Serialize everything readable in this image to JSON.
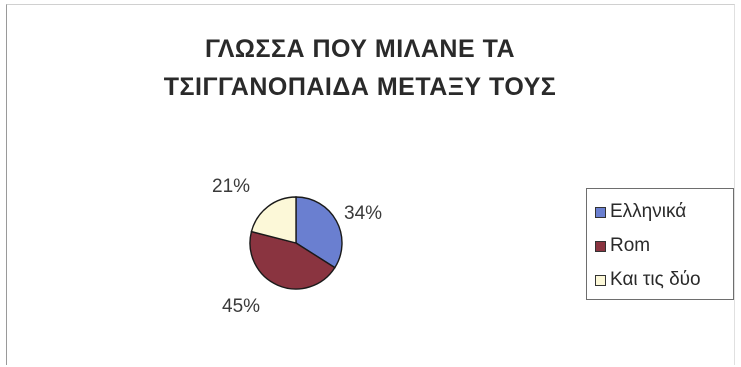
{
  "chart_data": {
    "type": "pie",
    "title_lines": [
      "ΓΛΩΣΣΑ ΠΟΥ ΜΙΛΑΝΕ ΤΑ",
      "ΤΣΙΓΓΑΝΟΠΑΙΔΑ ΜΕΤΑΞΥ ΤΟΥΣ"
    ],
    "categories": [
      "Ελληνικά",
      "Rom",
      "Και τις δύο"
    ],
    "values": [
      34,
      45,
      21
    ],
    "labels": [
      "34%",
      "45%",
      "21%"
    ],
    "colors": [
      "#6a7fd0",
      "#8a3440",
      "#fcf8d8"
    ],
    "legend_position": "right"
  }
}
